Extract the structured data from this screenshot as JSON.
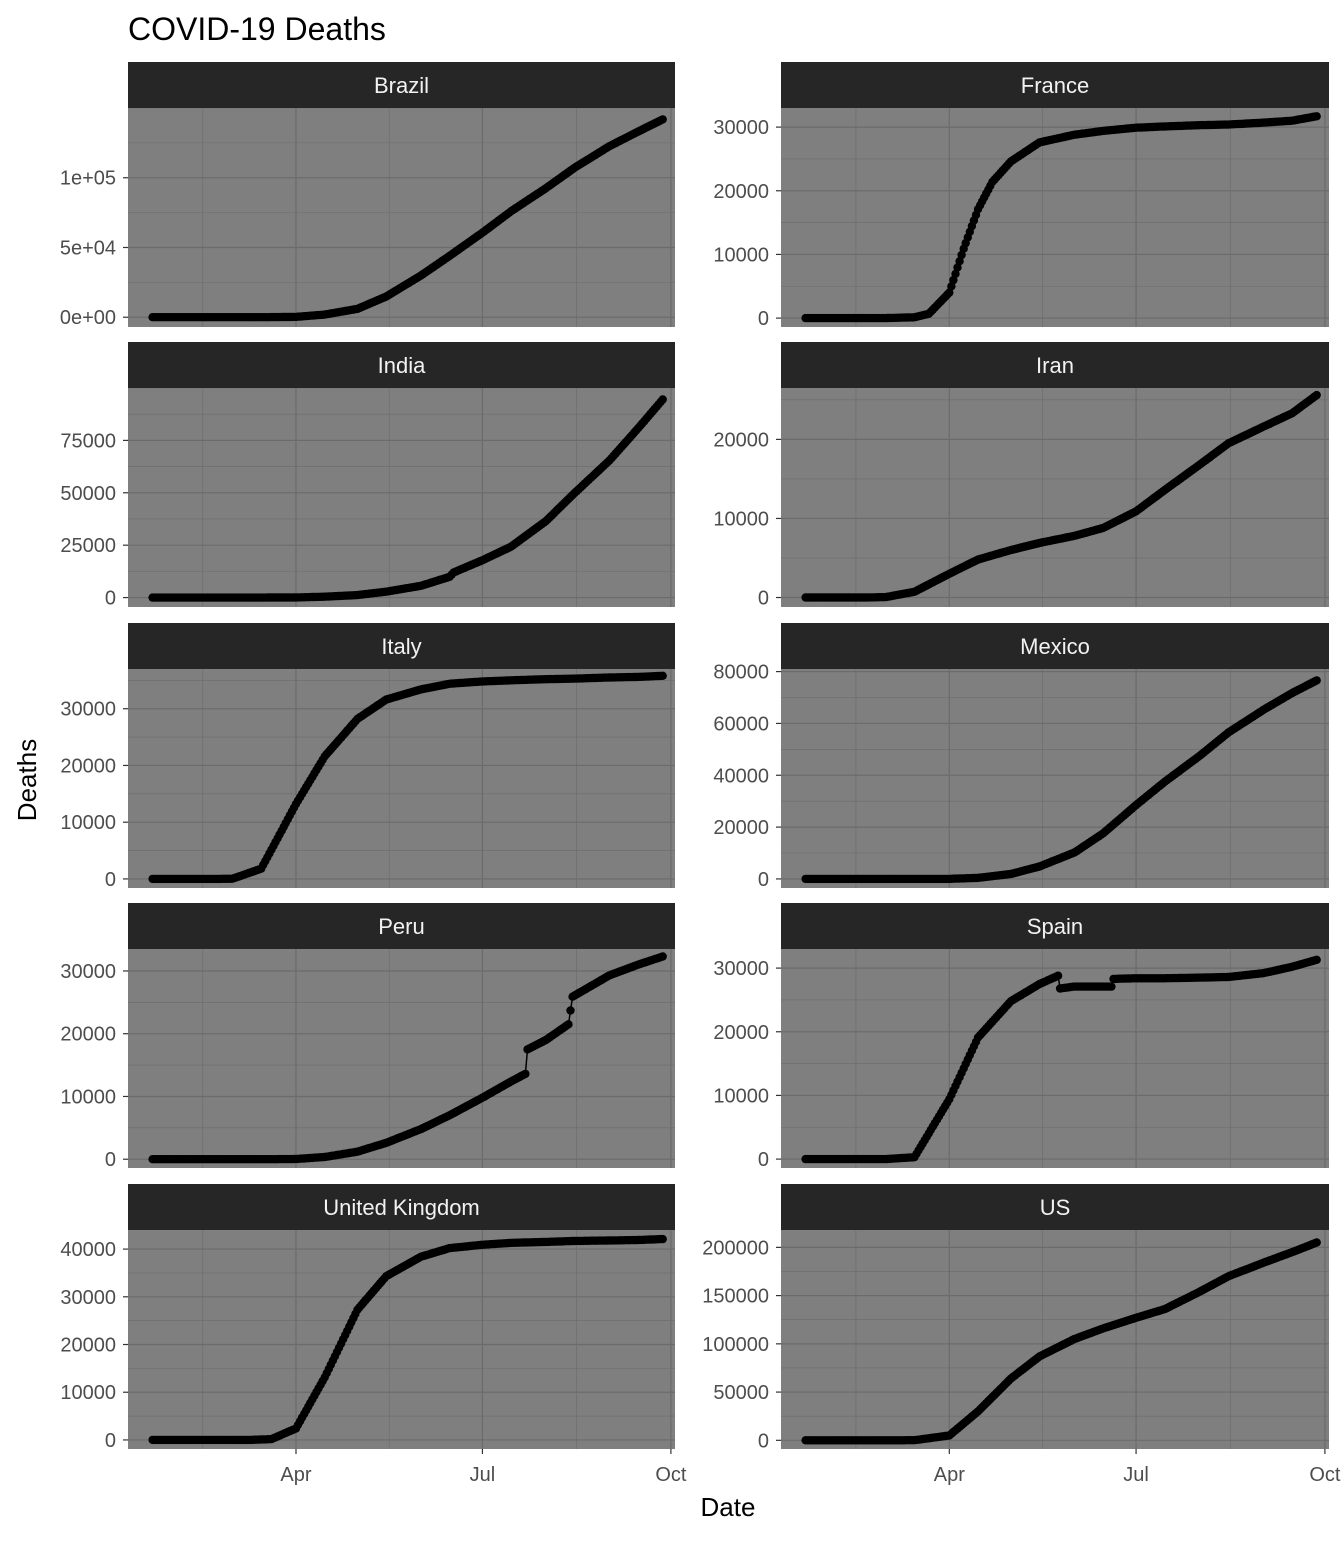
{
  "chart_data": {
    "type": "scatter",
    "title": "COVID-19 Deaths",
    "xlabel": "Date",
    "ylabel": "Deaths",
    "x_ticks": [
      "Apr",
      "Jul",
      "Oct"
    ],
    "x_tick_dates": [
      "2020-04-01",
      "2020-07-01",
      "2020-10-01"
    ],
    "xlim": [
      "2020-01-10",
      "2020-10-03"
    ],
    "colors": {
      "panel": "#7f7f7f",
      "strip": "#262626",
      "grid": "#6b6b6b",
      "points": "#000000"
    },
    "facets": [
      {
        "name": "Brazil",
        "ylim": [
          -7000,
          150000
        ],
        "y_ticks": [
          0,
          50000,
          100000
        ],
        "y_tick_labels": [
          "0e+00",
          "5e+04",
          "1e+05"
        ],
        "points": [
          [
            "2020-01-22",
            0
          ],
          [
            "2020-03-15",
            0
          ],
          [
            "2020-04-01",
            240
          ],
          [
            "2020-04-15",
            1900
          ],
          [
            "2020-05-01",
            6000
          ],
          [
            "2020-05-15",
            14800
          ],
          [
            "2020-06-01",
            29900
          ],
          [
            "2020-06-15",
            44000
          ],
          [
            "2020-07-01",
            60600
          ],
          [
            "2020-07-15",
            76000
          ],
          [
            "2020-08-01",
            92500
          ],
          [
            "2020-08-15",
            107200
          ],
          [
            "2020-09-01",
            122600
          ],
          [
            "2020-09-15",
            133100
          ],
          [
            "2020-09-27",
            141800
          ]
        ]
      },
      {
        "name": "France",
        "ylim": [
          -1400,
          33000
        ],
        "y_ticks": [
          0,
          10000,
          20000,
          30000
        ],
        "y_tick_labels": [
          "0",
          "10000",
          "20000",
          "30000"
        ],
        "points": [
          [
            "2020-01-22",
            0
          ],
          [
            "2020-03-01",
            2
          ],
          [
            "2020-03-15",
            120
          ],
          [
            "2020-03-22",
            670
          ],
          [
            "2020-04-01",
            4000
          ],
          [
            "2020-04-08",
            10900
          ],
          [
            "2020-04-15",
            17100
          ],
          [
            "2020-04-22",
            21400
          ],
          [
            "2020-05-01",
            24600
          ],
          [
            "2020-05-15",
            27600
          ],
          [
            "2020-06-01",
            28800
          ],
          [
            "2020-06-15",
            29400
          ],
          [
            "2020-07-01",
            29900
          ],
          [
            "2020-07-15",
            30100
          ],
          [
            "2020-08-01",
            30300
          ],
          [
            "2020-08-15",
            30400
          ],
          [
            "2020-09-01",
            30700
          ],
          [
            "2020-09-15",
            31000
          ],
          [
            "2020-09-27",
            31700
          ]
        ]
      },
      {
        "name": "India",
        "ylim": [
          -4500,
          100000
        ],
        "y_ticks": [
          0,
          25000,
          50000,
          75000
        ],
        "y_tick_labels": [
          "0",
          "25000",
          "50000",
          "75000"
        ],
        "points": [
          [
            "2020-01-22",
            0
          ],
          [
            "2020-03-15",
            2
          ],
          [
            "2020-04-01",
            50
          ],
          [
            "2020-04-15",
            400
          ],
          [
            "2020-05-01",
            1200
          ],
          [
            "2020-05-15",
            2800
          ],
          [
            "2020-06-01",
            5600
          ],
          [
            "2020-06-15",
            9900
          ],
          [
            "2020-06-17",
            12000
          ],
          [
            "2020-07-01",
            17800
          ],
          [
            "2020-07-15",
            24300
          ],
          [
            "2020-08-01",
            36500
          ],
          [
            "2020-08-15",
            49900
          ],
          [
            "2020-09-01",
            65400
          ],
          [
            "2020-09-15",
            80800
          ],
          [
            "2020-09-27",
            94500
          ]
        ]
      },
      {
        "name": "Iran",
        "ylim": [
          -1200,
          26500
        ],
        "y_ticks": [
          0,
          10000,
          20000
        ],
        "y_tick_labels": [
          "0",
          "10000",
          "20000"
        ],
        "points": [
          [
            "2020-01-22",
            0
          ],
          [
            "2020-02-20",
            0
          ],
          [
            "2020-03-01",
            50
          ],
          [
            "2020-03-15",
            720
          ],
          [
            "2020-04-01",
            3000
          ],
          [
            "2020-04-15",
            4800
          ],
          [
            "2020-05-01",
            6000
          ],
          [
            "2020-05-15",
            6900
          ],
          [
            "2020-06-01",
            7800
          ],
          [
            "2020-06-15",
            8800
          ],
          [
            "2020-07-01",
            10900
          ],
          [
            "2020-07-15",
            13600
          ],
          [
            "2020-08-01",
            16800
          ],
          [
            "2020-08-15",
            19500
          ],
          [
            "2020-09-01",
            21600
          ],
          [
            "2020-09-15",
            23300
          ],
          [
            "2020-09-27",
            25600
          ]
        ]
      },
      {
        "name": "Italy",
        "ylim": [
          -1600,
          37000
        ],
        "y_ticks": [
          0,
          10000,
          20000,
          30000
        ],
        "y_tick_labels": [
          "0",
          "10000",
          "20000",
          "30000"
        ],
        "points": [
          [
            "2020-01-22",
            0
          ],
          [
            "2020-02-22",
            1
          ],
          [
            "2020-03-01",
            34
          ],
          [
            "2020-03-15",
            1800
          ],
          [
            "2020-04-01",
            13200
          ],
          [
            "2020-04-15",
            21600
          ],
          [
            "2020-05-01",
            28200
          ],
          [
            "2020-05-15",
            31600
          ],
          [
            "2020-06-01",
            33400
          ],
          [
            "2020-06-15",
            34400
          ],
          [
            "2020-07-01",
            34800
          ],
          [
            "2020-07-15",
            35000
          ],
          [
            "2020-08-01",
            35200
          ],
          [
            "2020-08-15",
            35300
          ],
          [
            "2020-09-01",
            35500
          ],
          [
            "2020-09-15",
            35600
          ],
          [
            "2020-09-27",
            35800
          ]
        ]
      },
      {
        "name": "Mexico",
        "ylim": [
          -3500,
          81000
        ],
        "y_ticks": [
          0,
          20000,
          40000,
          60000,
          80000
        ],
        "y_tick_labels": [
          "0",
          "20000",
          "40000",
          "60000",
          "80000"
        ],
        "points": [
          [
            "2020-01-22",
            0
          ],
          [
            "2020-03-20",
            1
          ],
          [
            "2020-04-01",
            30
          ],
          [
            "2020-04-15",
            400
          ],
          [
            "2020-05-01",
            1900
          ],
          [
            "2020-05-15",
            4800
          ],
          [
            "2020-06-01",
            10200
          ],
          [
            "2020-06-15",
            17600
          ],
          [
            "2020-07-01",
            28500
          ],
          [
            "2020-07-15",
            37500
          ],
          [
            "2020-08-01",
            47500
          ],
          [
            "2020-08-15",
            56500
          ],
          [
            "2020-09-01",
            65200
          ],
          [
            "2020-09-15",
            71700
          ],
          [
            "2020-09-27",
            76600
          ]
        ]
      },
      {
        "name": "Peru",
        "ylim": [
          -1400,
          33500
        ],
        "y_ticks": [
          0,
          10000,
          20000,
          30000
        ],
        "y_tick_labels": [
          "0",
          "10000",
          "20000",
          "30000"
        ],
        "points": [
          [
            "2020-01-22",
            0
          ],
          [
            "2020-03-20",
            2
          ],
          [
            "2020-04-01",
            30
          ],
          [
            "2020-04-15",
            350
          ],
          [
            "2020-05-01",
            1200
          ],
          [
            "2020-05-15",
            2600
          ],
          [
            "2020-06-01",
            4800
          ],
          [
            "2020-06-15",
            7000
          ],
          [
            "2020-07-01",
            9800
          ],
          [
            "2020-07-15",
            12400
          ],
          [
            "2020-07-22",
            13600
          ],
          [
            "2020-07-23",
            17500
          ],
          [
            "2020-08-01",
            19000
          ],
          [
            "2020-08-12",
            21500
          ],
          [
            "2020-08-14",
            25900
          ],
          [
            "2020-09-01",
            29300
          ],
          [
            "2020-09-15",
            31000
          ],
          [
            "2020-09-27",
            32300
          ]
        ]
      },
      {
        "name": "Spain",
        "ylim": [
          -1400,
          33000
        ],
        "y_ticks": [
          0,
          10000,
          20000,
          30000
        ],
        "y_tick_labels": [
          "0",
          "10000",
          "20000",
          "30000"
        ],
        "points": [
          [
            "2020-01-22",
            0
          ],
          [
            "2020-03-01",
            0
          ],
          [
            "2020-03-15",
            290
          ],
          [
            "2020-04-01",
            9400
          ],
          [
            "2020-04-15",
            19100
          ],
          [
            "2020-05-01",
            24800
          ],
          [
            "2020-05-15",
            27500
          ],
          [
            "2020-05-24",
            28800
          ],
          [
            "2020-05-25",
            26800
          ],
          [
            "2020-06-01",
            27100
          ],
          [
            "2020-06-15",
            27100
          ],
          [
            "2020-06-19",
            27100
          ],
          [
            "2020-06-20",
            28300
          ],
          [
            "2020-07-01",
            28400
          ],
          [
            "2020-07-15",
            28400
          ],
          [
            "2020-08-01",
            28500
          ],
          [
            "2020-08-15",
            28600
          ],
          [
            "2020-09-01",
            29200
          ],
          [
            "2020-09-15",
            30200
          ],
          [
            "2020-09-27",
            31300
          ]
        ]
      },
      {
        "name": "United Kingdom",
        "ylim": [
          -1900,
          44000
        ],
        "y_ticks": [
          0,
          10000,
          20000,
          30000,
          40000
        ],
        "y_tick_labels": [
          "0",
          "10000",
          "20000",
          "30000",
          "40000"
        ],
        "points": [
          [
            "2020-01-22",
            0
          ],
          [
            "2020-03-10",
            6
          ],
          [
            "2020-03-20",
            170
          ],
          [
            "2020-04-01",
            2400
          ],
          [
            "2020-04-15",
            13100
          ],
          [
            "2020-05-01",
            27300
          ],
          [
            "2020-05-15",
            34300
          ],
          [
            "2020-06-01",
            38400
          ],
          [
            "2020-06-15",
            40200
          ],
          [
            "2020-07-01",
            40900
          ],
          [
            "2020-07-15",
            41300
          ],
          [
            "2020-08-01",
            41500
          ],
          [
            "2020-08-15",
            41700
          ],
          [
            "2020-09-01",
            41800
          ],
          [
            "2020-09-15",
            41900
          ],
          [
            "2020-09-27",
            42100
          ]
        ]
      },
      {
        "name": "US",
        "ylim": [
          -9000,
          218000
        ],
        "y_ticks": [
          0,
          50000,
          100000,
          150000,
          200000
        ],
        "y_tick_labels": [
          "0",
          "50000",
          "100000",
          "150000",
          "200000"
        ],
        "points": [
          [
            "2020-01-22",
            0
          ],
          [
            "2020-03-01",
            1
          ],
          [
            "2020-03-15",
            100
          ],
          [
            "2020-04-01",
            5000
          ],
          [
            "2020-04-15",
            30000
          ],
          [
            "2020-05-01",
            64000
          ],
          [
            "2020-05-15",
            87000
          ],
          [
            "2020-06-01",
            105000
          ],
          [
            "2020-06-15",
            116000
          ],
          [
            "2020-07-01",
            127000
          ],
          [
            "2020-07-15",
            136000
          ],
          [
            "2020-08-01",
            154000
          ],
          [
            "2020-08-15",
            170000
          ],
          [
            "2020-09-01",
            184000
          ],
          [
            "2020-09-15",
            195000
          ],
          [
            "2020-09-27",
            205000
          ]
        ]
      }
    ]
  }
}
